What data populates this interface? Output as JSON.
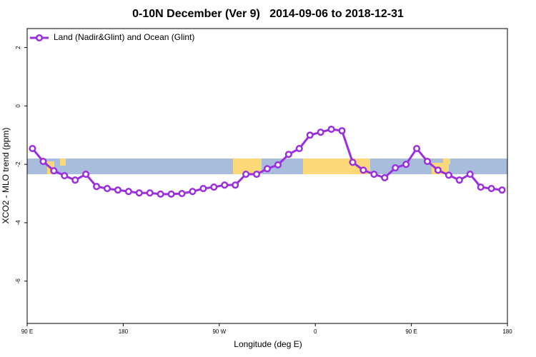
{
  "chart_data": {
    "type": "line",
    "title": "0-10N December (Ver 9)   2014-09-06 to 2018-12-31",
    "x_label": "Longitude (deg E)",
    "y_label": "XCO2 - MLO trend (ppm)",
    "x": [
      95,
      105,
      115,
      125,
      135,
      145,
      155,
      165,
      175,
      185,
      195,
      205,
      215,
      225,
      235,
      245,
      255,
      265,
      275,
      285,
      295,
      305,
      315,
      325,
      335,
      345,
      355,
      365,
      375,
      385,
      395,
      405,
      415,
      425,
      435,
      445,
      455,
      465,
      475,
      485,
      495,
      505,
      515,
      525,
      535
    ],
    "series": [
      {
        "name": "Land (Nadir&Glint) and Ocean (Glint)",
        "color": "#9b2fe0",
        "values": [
          -1.46,
          -1.9,
          -2.22,
          -2.39,
          -2.54,
          -2.34,
          -2.76,
          -2.83,
          -2.88,
          -2.93,
          -2.98,
          -2.98,
          -3.02,
          -3.02,
          -3.0,
          -2.93,
          -2.83,
          -2.78,
          -2.71,
          -2.71,
          -2.34,
          -2.34,
          -2.15,
          -2.02,
          -1.66,
          -1.46,
          -1.0,
          -0.9,
          -0.8,
          -0.85,
          -1.93,
          -2.2,
          -2.34,
          -2.46,
          -2.12,
          -2.0,
          -1.46,
          -1.9,
          -2.2,
          -2.37,
          -2.54,
          -2.34,
          -2.78,
          -2.83,
          -2.88
        ]
      }
    ],
    "xlim": [
      90,
      540
    ],
    "xticks": [
      {
        "value": 90,
        "label": "90 E"
      },
      180,
      {
        "value": 270,
        "label": "90 W"
      },
      {
        "value": 360,
        "label": "0"
      },
      {
        "value": 450,
        "label": "90 E"
      },
      {
        "value": 540,
        "label": "180"
      }
    ],
    "ylim": [
      -7.45,
      2.65
    ],
    "yticks": [
      2,
      0,
      -2,
      -4,
      -6
    ],
    "legend": "top-left"
  }
}
